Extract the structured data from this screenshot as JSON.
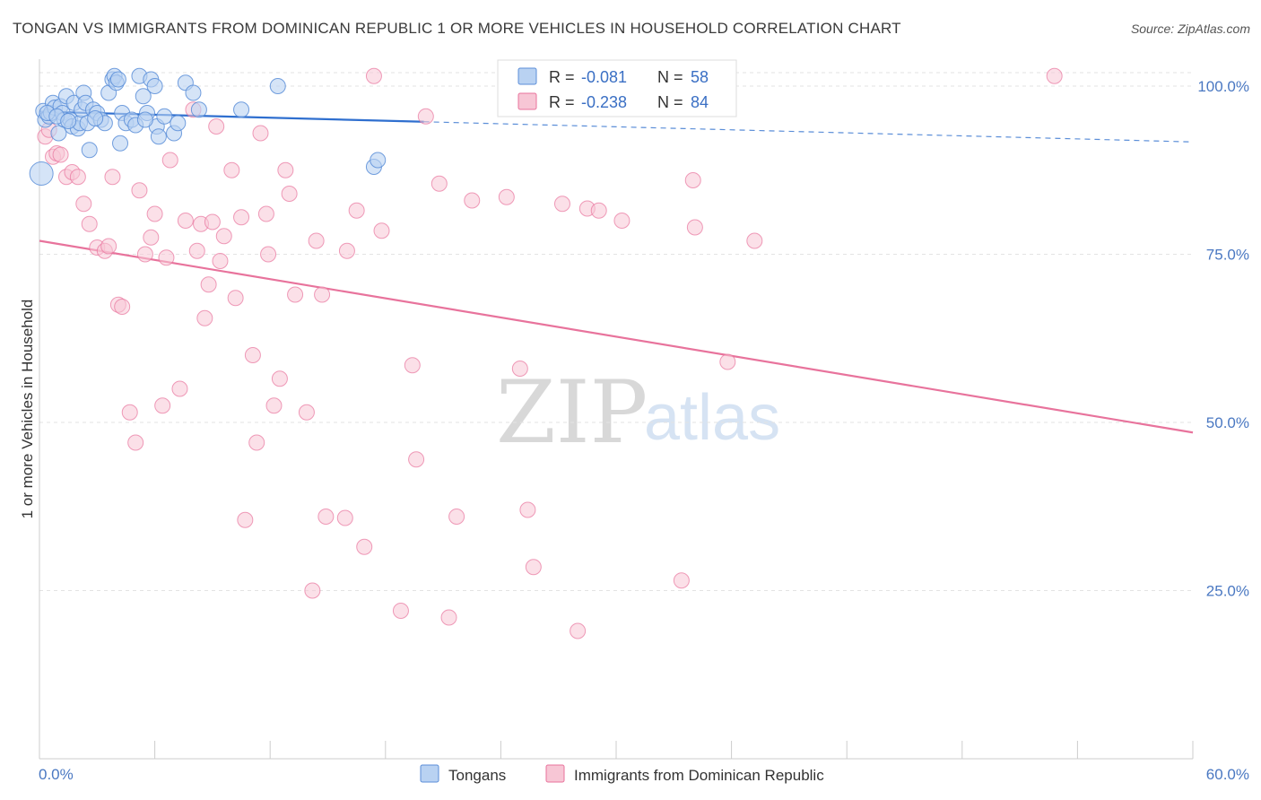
{
  "header": {
    "title": "TONGAN VS IMMIGRANTS FROM DOMINICAN REPUBLIC 1 OR MORE VEHICLES IN HOUSEHOLD CORRELATION CHART",
    "source": "Source: ZipAtlas.com"
  },
  "watermark": {
    "zip": "ZIP",
    "atlas": "atlas"
  },
  "colors": {
    "blue": "#5b8ed8",
    "blue_fill": "#b9d2f2",
    "pink": "#e8739c",
    "pink_fill": "#f7c6d5",
    "tick_text": "#4a78c2",
    "grid": "#e3e3e3"
  },
  "legend_top": {
    "rows": [
      {
        "r_label": "R = ",
        "r_value": "-0.081",
        "n_label": "N = ",
        "n_value": "58"
      },
      {
        "r_label": "R = ",
        "r_value": "-0.238",
        "n_label": "N = ",
        "n_value": "84"
      }
    ]
  },
  "chart_data": {
    "type": "scatter",
    "title": "TONGAN VS IMMIGRANTS FROM DOMINICAN REPUBLIC 1 OR MORE VEHICLES IN HOUSEHOLD CORRELATION CHART",
    "xlabel": "",
    "ylabel": "1 or more Vehicles in Household",
    "xlim": [
      0,
      60
    ],
    "ylim": [
      0,
      104
    ],
    "x_tick_labels": [
      "0.0%",
      "60.0%"
    ],
    "y_ticks": [
      25,
      50,
      75,
      100
    ],
    "y_tick_labels": [
      "25.0%",
      "50.0%",
      "75.0%",
      "100.0%"
    ],
    "grid": true,
    "legend_position": "top-center",
    "series": [
      {
        "name": "Tongans",
        "color": "#5b8ed8",
        "r": -0.081,
        "n": 58,
        "trend": {
          "x": [
            0,
            20
          ],
          "y": [
            96.2,
            94.7
          ],
          "dashed_extension": {
            "x": [
              20,
              60
            ],
            "y": [
              94.7,
              91.7
            ]
          }
        },
        "points": [
          [
            0.1,
            87.0
          ],
          [
            0.2,
            96.3
          ],
          [
            0.3,
            95.0
          ],
          [
            0.5,
            95.5
          ],
          [
            0.6,
            96.0
          ],
          [
            0.7,
            97.5
          ],
          [
            0.8,
            96.8
          ],
          [
            1.0,
            93.0
          ],
          [
            1.1,
            97.0
          ],
          [
            1.2,
            96.0
          ],
          [
            1.3,
            95.0
          ],
          [
            1.4,
            98.5
          ],
          [
            1.6,
            95.0
          ],
          [
            1.7,
            94.0
          ],
          [
            1.8,
            97.5
          ],
          [
            2.0,
            93.7
          ],
          [
            2.1,
            94.5
          ],
          [
            2.2,
            96.5
          ],
          [
            2.3,
            99.0
          ],
          [
            2.4,
            97.5
          ],
          [
            2.5,
            94.5
          ],
          [
            2.6,
            90.5
          ],
          [
            2.8,
            96.5
          ],
          [
            3.0,
            96.0
          ],
          [
            3.2,
            95.0
          ],
          [
            3.4,
            94.5
          ],
          [
            3.6,
            99.0
          ],
          [
            3.8,
            101.0
          ],
          [
            3.9,
            101.5
          ],
          [
            4.0,
            100.5
          ],
          [
            4.1,
            101.0
          ],
          [
            4.2,
            91.5
          ],
          [
            4.3,
            96.0
          ],
          [
            4.5,
            94.5
          ],
          [
            4.8,
            95.0
          ],
          [
            5.0,
            94.2
          ],
          [
            5.2,
            101.5
          ],
          [
            5.4,
            98.5
          ],
          [
            5.6,
            96.0
          ],
          [
            5.8,
            101.0
          ],
          [
            6.0,
            100.0
          ],
          [
            6.1,
            94.0
          ],
          [
            6.2,
            92.5
          ],
          [
            6.5,
            95.5
          ],
          [
            7.0,
            93.0
          ],
          [
            7.2,
            94.5
          ],
          [
            7.6,
            100.5
          ],
          [
            8.0,
            99.0
          ],
          [
            8.3,
            96.5
          ],
          [
            10.5,
            96.5
          ],
          [
            12.4,
            100.0
          ],
          [
            17.4,
            88.0
          ],
          [
            17.6,
            89.0
          ],
          [
            0.4,
            96.0
          ],
          [
            0.9,
            95.5
          ],
          [
            1.5,
            94.8
          ],
          [
            2.9,
            95.2
          ],
          [
            5.5,
            95.0
          ]
        ]
      },
      {
        "name": "Immigrants from Dominican Republic",
        "color": "#e8739c",
        "r": -0.238,
        "n": 84,
        "trend": {
          "x": [
            0,
            60
          ],
          "y": [
            77.0,
            48.5
          ]
        },
        "points": [
          [
            0.3,
            92.5
          ],
          [
            0.5,
            93.5
          ],
          [
            0.7,
            89.5
          ],
          [
            0.9,
            90.0
          ],
          [
            1.1,
            89.8
          ],
          [
            1.4,
            86.5
          ],
          [
            1.7,
            87.2
          ],
          [
            2.0,
            86.5
          ],
          [
            2.3,
            82.5
          ],
          [
            2.6,
            79.5
          ],
          [
            3.0,
            76.0
          ],
          [
            3.4,
            75.5
          ],
          [
            3.8,
            86.5
          ],
          [
            4.1,
            67.5
          ],
          [
            4.3,
            67.2
          ],
          [
            4.7,
            51.5
          ],
          [
            5.0,
            47.0
          ],
          [
            5.2,
            84.5
          ],
          [
            5.5,
            75.0
          ],
          [
            5.8,
            77.5
          ],
          [
            6.0,
            81.0
          ],
          [
            6.4,
            52.5
          ],
          [
            6.6,
            74.5
          ],
          [
            6.8,
            89.0
          ],
          [
            7.3,
            55.0
          ],
          [
            7.6,
            80.0
          ],
          [
            8.0,
            96.5
          ],
          [
            8.2,
            75.5
          ],
          [
            8.4,
            79.5
          ],
          [
            8.6,
            65.5
          ],
          [
            8.8,
            70.5
          ],
          [
            9.0,
            79.8
          ],
          [
            9.2,
            94.0
          ],
          [
            9.4,
            74.0
          ],
          [
            9.6,
            77.7
          ],
          [
            10.0,
            87.5
          ],
          [
            10.2,
            68.5
          ],
          [
            10.5,
            80.5
          ],
          [
            10.7,
            35.5
          ],
          [
            11.1,
            60.0
          ],
          [
            11.3,
            47.0
          ],
          [
            11.5,
            93.0
          ],
          [
            11.8,
            81.0
          ],
          [
            11.9,
            75.0
          ],
          [
            12.2,
            52.5
          ],
          [
            12.5,
            56.5
          ],
          [
            12.8,
            87.5
          ],
          [
            13.0,
            84.0
          ],
          [
            13.3,
            69.0
          ],
          [
            13.9,
            51.5
          ],
          [
            14.2,
            25.0
          ],
          [
            14.4,
            77.0
          ],
          [
            14.7,
            69.0
          ],
          [
            14.9,
            36.0
          ],
          [
            16.0,
            75.5
          ],
          [
            16.5,
            81.5
          ],
          [
            16.9,
            31.5
          ],
          [
            17.4,
            101.5
          ],
          [
            17.8,
            78.5
          ],
          [
            18.8,
            22.0
          ],
          [
            19.4,
            58.5
          ],
          [
            19.6,
            44.5
          ],
          [
            20.1,
            95.5
          ],
          [
            20.8,
            85.5
          ],
          [
            21.3,
            21.0
          ],
          [
            21.7,
            36.0
          ],
          [
            22.5,
            83.0
          ],
          [
            24.3,
            83.5
          ],
          [
            25.0,
            58.0
          ],
          [
            25.4,
            37.0
          ],
          [
            25.7,
            28.5
          ],
          [
            27.2,
            82.5
          ],
          [
            28.0,
            19.0
          ],
          [
            28.5,
            81.8
          ],
          [
            29.1,
            81.5
          ],
          [
            30.3,
            80.0
          ],
          [
            33.4,
            26.5
          ],
          [
            34.0,
            86.0
          ],
          [
            34.1,
            79.0
          ],
          [
            35.8,
            59.0
          ],
          [
            37.2,
            77.0
          ],
          [
            52.8,
            101.5
          ],
          [
            15.9,
            35.8
          ],
          [
            3.6,
            76.2
          ]
        ]
      }
    ]
  },
  "legend_bottom": {
    "items": [
      {
        "label": "Tongans"
      },
      {
        "label": "Immigrants from Dominican Republic"
      }
    ]
  }
}
